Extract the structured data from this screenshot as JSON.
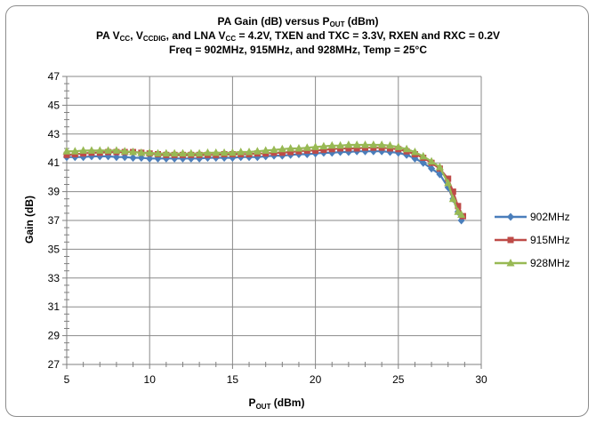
{
  "chart_data": {
    "type": "line",
    "title": {
      "line1": {
        "pre": "PA Gain (dB) versus P",
        "sub": "OUT",
        "post": " (dBm)"
      },
      "line2": {
        "p1": "PA V",
        "s1": "CC",
        "p2": ", V",
        "s2": "CCDIG",
        "p3": ", and LNA V",
        "s3": "CC",
        "p4": "  = 4.2V, TXEN and TXC = 3.3V, RXEN and RXC = 0.2V"
      },
      "line3": "Freq = 902MHz, 915MHz, and 928MHz, Temp = 25°C"
    },
    "xlabel": {
      "pre": "P",
      "sub": "OUT",
      "post": " (dBm)"
    },
    "ylabel": "Gain (dB)",
    "xlim": [
      5,
      30
    ],
    "ylim": [
      27,
      47
    ],
    "xticks": [
      5,
      10,
      15,
      20,
      25,
      30
    ],
    "yticks": [
      27,
      29,
      31,
      33,
      35,
      37,
      39,
      41,
      43,
      45,
      47
    ],
    "grid": true,
    "legend_position": "right",
    "series": [
      {
        "name": "902MHz",
        "color": "#4a7ebb",
        "marker": "diamond",
        "x": [
          5,
          5.5,
          6,
          6.5,
          7,
          7.5,
          8,
          8.5,
          9,
          9.5,
          10,
          10.5,
          11,
          11.5,
          12,
          12.5,
          13,
          13.5,
          14,
          14.5,
          15,
          15.5,
          16,
          16.5,
          17,
          17.5,
          18,
          18.5,
          19,
          19.5,
          20,
          20.5,
          21,
          21.5,
          22,
          22.5,
          23,
          23.5,
          24,
          24.5,
          25,
          25.5,
          26,
          26.5,
          27,
          27.5,
          28,
          28.3,
          28.6,
          28.8
        ],
        "y": [
          41.4,
          41.4,
          41.4,
          41.45,
          41.45,
          41.45,
          41.4,
          41.4,
          41.35,
          41.35,
          41.3,
          41.3,
          41.3,
          41.3,
          41.3,
          41.3,
          41.3,
          41.35,
          41.35,
          41.35,
          41.35,
          41.4,
          41.4,
          41.4,
          41.45,
          41.5,
          41.5,
          41.55,
          41.6,
          41.6,
          41.65,
          41.7,
          41.7,
          41.75,
          41.75,
          41.8,
          41.8,
          41.8,
          41.8,
          41.75,
          41.7,
          41.55,
          41.3,
          41.0,
          40.6,
          40.2,
          39.3,
          38.5,
          37.6,
          37.0
        ]
      },
      {
        "name": "915MHz",
        "color": "#be4b48",
        "marker": "square",
        "x": [
          5,
          5.5,
          6,
          6.5,
          7,
          7.5,
          8,
          8.5,
          9,
          9.5,
          10,
          10.5,
          11,
          11.5,
          12,
          12.5,
          13,
          13.5,
          14,
          14.5,
          15,
          15.5,
          16,
          16.5,
          17,
          17.5,
          18,
          18.5,
          19,
          19.5,
          20,
          20.5,
          21,
          21.5,
          22,
          22.5,
          23,
          23.5,
          24,
          24.5,
          25,
          25.5,
          26,
          26.5,
          27,
          27.5,
          28,
          28.3,
          28.6,
          28.9
        ],
        "y": [
          41.55,
          41.6,
          41.65,
          41.7,
          41.7,
          41.75,
          41.75,
          41.75,
          41.75,
          41.7,
          41.65,
          41.6,
          41.55,
          41.55,
          41.55,
          41.55,
          41.55,
          41.55,
          41.55,
          41.6,
          41.6,
          41.6,
          41.6,
          41.65,
          41.65,
          41.7,
          41.7,
          41.75,
          41.8,
          41.85,
          41.85,
          41.9,
          41.95,
          42.0,
          42.0,
          42.0,
          42.05,
          42.05,
          42.05,
          42.0,
          41.95,
          41.8,
          41.6,
          41.35,
          41.0,
          40.6,
          39.9,
          39.0,
          38.0,
          37.3
        ]
      },
      {
        "name": "928MHz",
        "color": "#98b954",
        "marker": "triangle",
        "x": [
          5,
          5.5,
          6,
          6.5,
          7,
          7.5,
          8,
          8.5,
          9,
          9.5,
          10,
          10.5,
          11,
          11.5,
          12,
          12.5,
          13,
          13.5,
          14,
          14.5,
          15,
          15.5,
          16,
          16.5,
          17,
          17.5,
          18,
          18.5,
          19,
          19.5,
          20,
          20.5,
          21,
          21.5,
          22,
          22.5,
          23,
          23.5,
          24,
          24.5,
          25,
          25.5,
          26,
          26.5,
          27,
          27.5,
          28,
          28.3,
          28.6,
          28.8
        ],
        "y": [
          41.8,
          41.8,
          41.85,
          41.85,
          41.85,
          41.85,
          41.85,
          41.8,
          41.75,
          41.7,
          41.7,
          41.65,
          41.65,
          41.65,
          41.65,
          41.65,
          41.65,
          41.7,
          41.7,
          41.7,
          41.7,
          41.75,
          41.75,
          41.8,
          41.85,
          41.9,
          41.95,
          42.0,
          42.0,
          42.05,
          42.1,
          42.15,
          42.2,
          42.2,
          42.25,
          42.25,
          42.25,
          42.25,
          42.25,
          42.2,
          42.1,
          41.95,
          41.75,
          41.45,
          41.1,
          40.7,
          39.6,
          38.5,
          37.6,
          37.4
        ]
      }
    ]
  }
}
